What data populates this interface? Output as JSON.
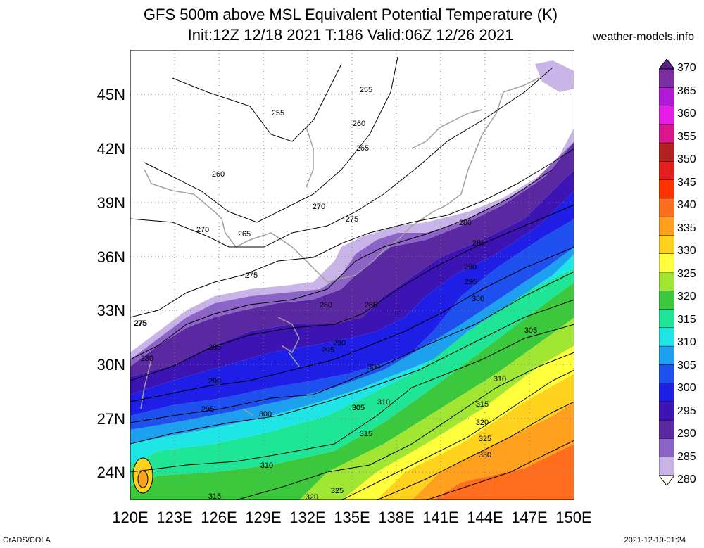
{
  "title_line1": "GFS 500m above MSL Equivalent Potential Temperature (K)",
  "title_line2": "Init:12Z 12/18 2021 T:186 Valid:06Z 12/26 2021",
  "site": "weather-models.info",
  "footer_left": "GrADS/COLA",
  "footer_right": "2021-12-19-01:24",
  "lat_labels": [
    "45N",
    "42N",
    "39N",
    "36N",
    "33N",
    "30N",
    "27N",
    "24N"
  ],
  "lon_labels": [
    "120E",
    "123E",
    "126E",
    "129E",
    "132E",
    "135E",
    "138E",
    "141E",
    "144E",
    "147E",
    "150E"
  ],
  "colorbar": {
    "labels": [
      "370",
      "365",
      "360",
      "355",
      "350",
      "345",
      "340",
      "335",
      "330",
      "325",
      "320",
      "315",
      "310",
      "305",
      "300",
      "295",
      "290",
      "285",
      "280"
    ],
    "colors": [
      "#7a2ea0",
      "#b21bd6",
      "#e61ee6",
      "#d8178a",
      "#b22020",
      "#e61e1e",
      "#ff3200",
      "#ff6e1e",
      "#ffa01e",
      "#ffd21e",
      "#ffff3c",
      "#a0e632",
      "#3cc83c",
      "#1ee696",
      "#1ee6e6",
      "#1ea0f0",
      "#1e50f0",
      "#1e1ee6",
      "#3c14b4",
      "#5a28a0",
      "#8c64c8",
      "#c8b4e6"
    ]
  },
  "contour_labels": [
    "255",
    "255",
    "260",
    "265",
    "260",
    "270",
    "270",
    "265",
    "275",
    "275",
    "275",
    "280",
    "275",
    "280",
    "285",
    "280",
    "285",
    "290",
    "295",
    "290",
    "295",
    "300",
    "285",
    "290",
    "295",
    "300",
    "305",
    "300",
    "305",
    "310",
    "310",
    "305",
    "315",
    "315",
    "320",
    "325",
    "330",
    "310",
    "315",
    "320",
    "325"
  ]
}
